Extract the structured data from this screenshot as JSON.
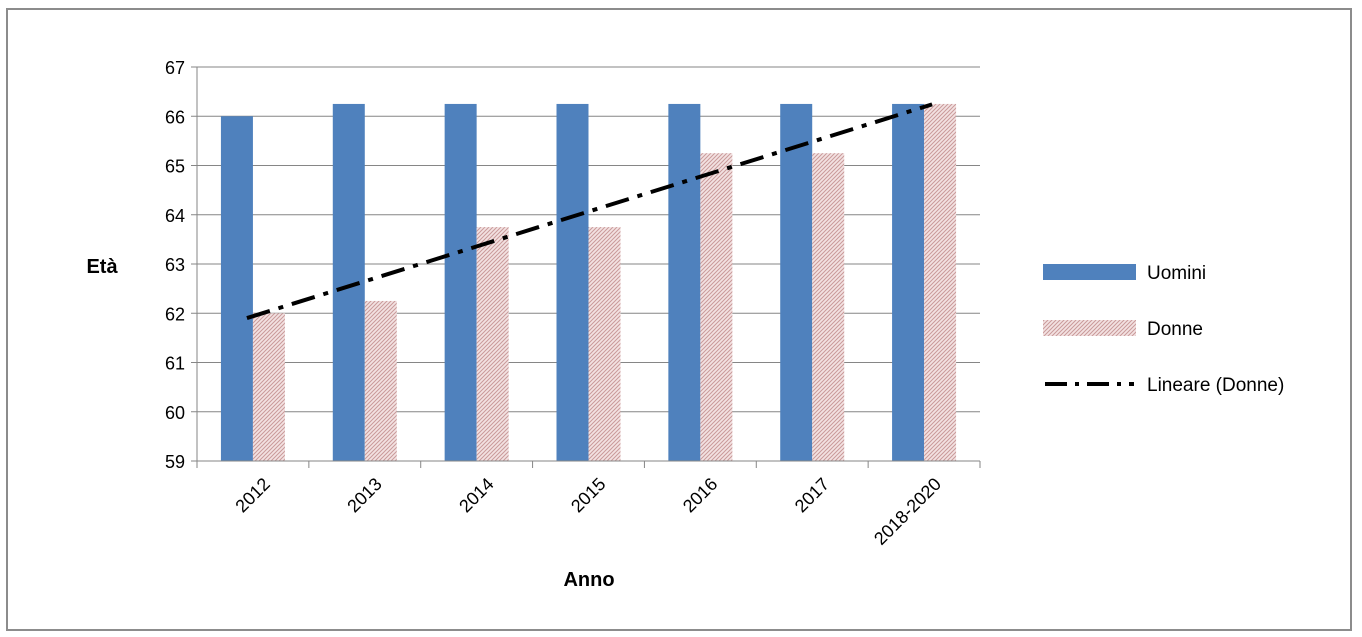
{
  "chart_data": {
    "type": "bar",
    "categories": [
      "2012",
      "2013",
      "2014",
      "2015",
      "2016",
      "2017",
      "2018-2020"
    ],
    "series": [
      {
        "name": "Uomini",
        "values": [
          66,
          66.25,
          66.25,
          66.25,
          66.25,
          66.25,
          66.25
        ],
        "color": "#4f81bd"
      },
      {
        "name": "Donne",
        "values": [
          62,
          62.25,
          63.75,
          63.75,
          65.25,
          65.25,
          66.25
        ],
        "color": "#e8c9c9",
        "pattern": "hatched"
      }
    ],
    "trendline": {
      "name": "Lineare (Donne)",
      "type": "linear",
      "series": "Donne",
      "style": "dash-dot",
      "color": "#000000"
    },
    "xlabel": "Anno",
    "ylabel": "Età",
    "ylim": [
      59,
      67
    ],
    "yticks": [
      59,
      60,
      61,
      62,
      63,
      64,
      65,
      66,
      67
    ],
    "grid": true,
    "legend": "right"
  }
}
